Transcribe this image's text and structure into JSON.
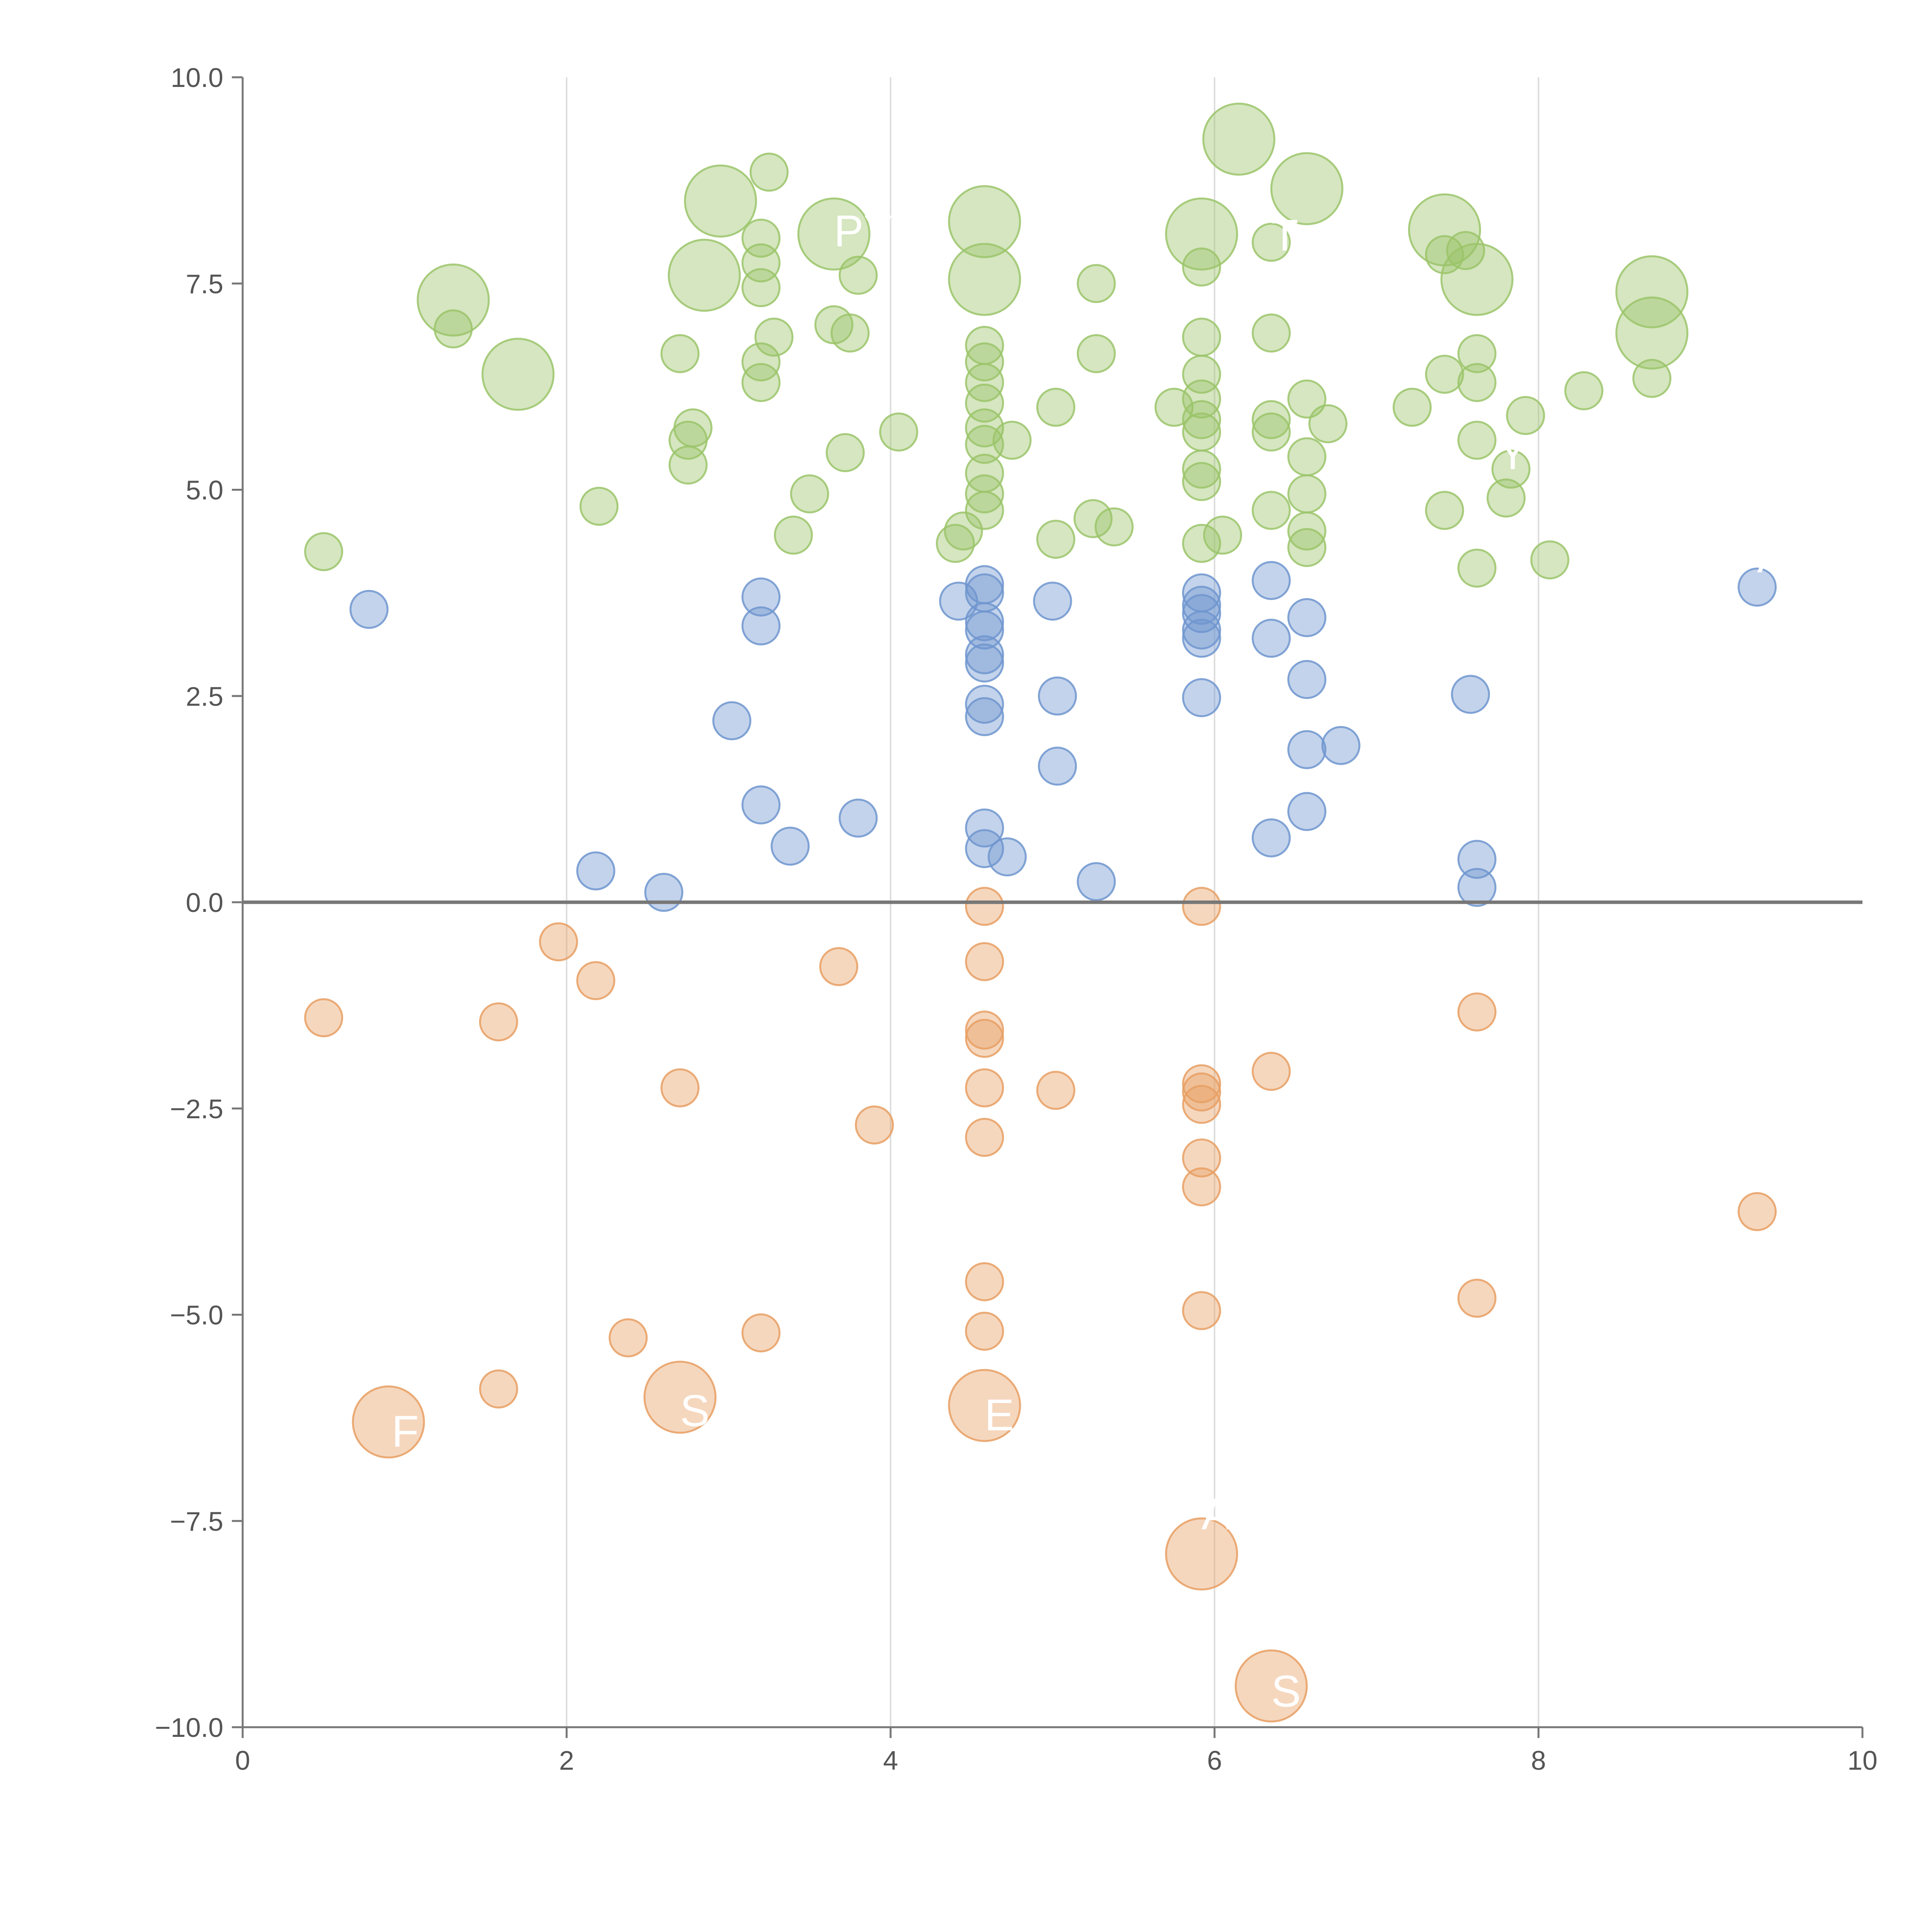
{
  "chart_data": {
    "type": "scatter",
    "title": "",
    "xlabel": "",
    "ylabel": "",
    "xlim": [
      0,
      10
    ],
    "ylim": [
      -10,
      10
    ],
    "x_ticks": [
      0,
      2,
      4,
      6,
      8,
      10
    ],
    "x_tick_labels": [
      "0",
      "2",
      "4",
      "6",
      "8",
      "10"
    ],
    "y_ticks": [
      -10,
      -7.5,
      -5,
      -2.5,
      0,
      2.5,
      5,
      7.5,
      10
    ],
    "y_tick_labels": [
      "−10.0",
      "−7.5",
      "−5.0",
      "−2.5",
      "0.0",
      "2.5",
      "5.0",
      "7.5",
      "10.0"
    ],
    "vertical_gridlines_at": [
      2,
      4,
      6,
      8
    ],
    "baseline_y": 0,
    "colors": {
      "green": "#9bc46a",
      "blue": "#6f95cf",
      "orange": "#e79f63",
      "axis": "#777777",
      "grid": "#dddddd",
      "label": "#ffffff"
    },
    "series": [
      {
        "name": "green",
        "size_unit": "small",
        "points": [
          [
            0.5,
            4.25,
            1
          ],
          [
            1.3,
            6.95,
            1
          ],
          [
            1.3,
            7.3,
            2
          ],
          [
            1.7,
            6.4,
            2
          ],
          [
            2.2,
            4.8,
            1
          ],
          [
            2.75,
            5.3,
            1
          ],
          [
            2.75,
            5.6,
            1
          ],
          [
            2.78,
            5.75,
            1
          ],
          [
            2.7,
            6.65,
            1
          ],
          [
            2.85,
            7.6,
            2
          ],
          [
            2.95,
            8.5,
            2
          ],
          [
            3.2,
            6.3,
            1
          ],
          [
            3.2,
            6.55,
            1
          ],
          [
            3.2,
            7.45,
            1
          ],
          [
            3.2,
            7.75,
            1
          ],
          [
            3.2,
            8.05,
            1
          ],
          [
            3.25,
            8.85,
            1
          ],
          [
            3.28,
            6.85,
            1
          ],
          [
            3.4,
            4.45,
            1
          ],
          [
            3.5,
            4.95,
            1
          ],
          [
            3.65,
            7.0,
            1
          ],
          [
            3.75,
            6.9,
            1
          ],
          [
            3.72,
            5.45,
            1
          ],
          [
            3.65,
            8.1,
            2
          ],
          [
            3.8,
            7.6,
            1
          ],
          [
            4.05,
            5.7,
            1
          ],
          [
            4.4,
            4.35,
            1
          ],
          [
            4.45,
            4.5,
            1
          ],
          [
            4.58,
            4.75,
            1
          ],
          [
            4.58,
            4.95,
            1
          ],
          [
            4.58,
            5.2,
            1
          ],
          [
            4.58,
            5.55,
            1
          ],
          [
            4.58,
            5.75,
            1
          ],
          [
            4.58,
            6.05,
            1
          ],
          [
            4.58,
            6.3,
            1
          ],
          [
            4.58,
            6.55,
            1
          ],
          [
            4.58,
            6.75,
            1
          ],
          [
            4.58,
            7.55,
            2
          ],
          [
            4.58,
            8.25,
            2
          ],
          [
            4.75,
            5.6,
            1
          ],
          [
            5.02,
            4.4,
            1
          ],
          [
            5.02,
            6.0,
            1
          ],
          [
            5.25,
            4.65,
            1
          ],
          [
            5.27,
            6.65,
            1
          ],
          [
            5.27,
            7.5,
            1
          ],
          [
            5.38,
            4.55,
            1
          ],
          [
            5.75,
            6.0,
            1
          ],
          [
            5.92,
            4.35,
            1
          ],
          [
            5.92,
            5.1,
            1
          ],
          [
            5.92,
            5.25,
            1
          ],
          [
            5.92,
            5.7,
            1
          ],
          [
            5.92,
            5.85,
            1
          ],
          [
            5.92,
            6.1,
            1
          ],
          [
            5.92,
            6.4,
            1
          ],
          [
            5.92,
            6.85,
            1
          ],
          [
            5.92,
            7.7,
            1
          ],
          [
            5.92,
            8.1,
            2
          ],
          [
            6.05,
            4.45,
            1
          ],
          [
            6.15,
            9.25,
            2
          ],
          [
            6.35,
            4.75,
            1
          ],
          [
            6.35,
            5.7,
            1
          ],
          [
            6.35,
            5.85,
            1
          ],
          [
            6.35,
            6.9,
            1
          ],
          [
            6.35,
            8.0,
            1
          ],
          [
            6.57,
            4.3,
            1
          ],
          [
            6.57,
            4.5,
            1
          ],
          [
            6.57,
            4.95,
            1
          ],
          [
            6.57,
            5.4,
            1
          ],
          [
            6.57,
            6.1,
            1
          ],
          [
            6.57,
            8.65,
            2
          ],
          [
            6.7,
            5.8,
            1
          ],
          [
            7.22,
            6.0,
            1
          ],
          [
            7.42,
            4.75,
            1
          ],
          [
            7.42,
            6.4,
            1
          ],
          [
            7.42,
            7.85,
            1
          ],
          [
            7.42,
            8.15,
            2
          ],
          [
            7.55,
            7.9,
            1
          ],
          [
            7.62,
            4.05,
            1
          ],
          [
            7.62,
            5.6,
            1
          ],
          [
            7.62,
            6.3,
            1
          ],
          [
            7.62,
            6.65,
            1
          ],
          [
            7.62,
            7.55,
            2
          ],
          [
            7.8,
            4.9,
            1
          ],
          [
            7.83,
            5.25,
            1
          ],
          [
            7.92,
            5.9,
            1
          ],
          [
            8.07,
            4.15,
            1
          ],
          [
            8.28,
            6.2,
            1
          ],
          [
            8.7,
            6.35,
            1
          ],
          [
            8.7,
            6.9,
            2
          ],
          [
            8.7,
            7.4,
            2
          ]
        ]
      },
      {
        "name": "blue",
        "size_unit": "small",
        "points": [
          [
            0.78,
            3.55,
            1
          ],
          [
            2.18,
            0.38,
            1
          ],
          [
            2.6,
            0.12,
            1
          ],
          [
            3.02,
            2.2,
            1
          ],
          [
            3.2,
            1.18,
            1
          ],
          [
            3.2,
            3.35,
            1
          ],
          [
            3.2,
            3.7,
            1
          ],
          [
            3.38,
            0.68,
            1
          ],
          [
            3.8,
            1.02,
            1
          ],
          [
            4.42,
            3.65,
            1
          ],
          [
            4.58,
            0.65,
            1
          ],
          [
            4.58,
            0.9,
            1
          ],
          [
            4.58,
            2.25,
            1
          ],
          [
            4.58,
            2.4,
            1
          ],
          [
            4.58,
            2.9,
            1
          ],
          [
            4.58,
            3.0,
            1
          ],
          [
            4.58,
            3.3,
            1
          ],
          [
            4.58,
            3.4,
            1
          ],
          [
            4.58,
            3.75,
            1
          ],
          [
            4.58,
            3.85,
            1
          ],
          [
            4.72,
            0.55,
            1
          ],
          [
            5.0,
            3.65,
            1
          ],
          [
            5.03,
            1.65,
            1
          ],
          [
            5.03,
            2.5,
            1
          ],
          [
            5.27,
            0.25,
            1
          ],
          [
            5.92,
            2.48,
            1
          ],
          [
            5.92,
            3.2,
            1
          ],
          [
            5.92,
            3.3,
            1
          ],
          [
            5.92,
            3.5,
            1
          ],
          [
            5.92,
            3.6,
            1
          ],
          [
            5.92,
            3.75,
            1
          ],
          [
            6.35,
            0.78,
            1
          ],
          [
            6.35,
            3.2,
            1
          ],
          [
            6.35,
            3.9,
            1
          ],
          [
            6.57,
            1.1,
            1
          ],
          [
            6.57,
            1.85,
            1
          ],
          [
            6.57,
            2.7,
            1
          ],
          [
            6.57,
            3.45,
            1
          ],
          [
            6.78,
            1.9,
            1
          ],
          [
            7.58,
            2.52,
            1
          ],
          [
            7.62,
            0.18,
            1
          ],
          [
            7.62,
            0.52,
            1
          ],
          [
            9.35,
            3.82,
            1
          ]
        ]
      },
      {
        "name": "orange",
        "size_unit": "small",
        "points": [
          [
            0.5,
            -1.4,
            1
          ],
          [
            0.9,
            -6.3,
            2
          ],
          [
            1.58,
            -1.45,
            1
          ],
          [
            1.58,
            -5.9,
            1
          ],
          [
            1.95,
            -0.48,
            1
          ],
          [
            2.18,
            -0.95,
            1
          ],
          [
            2.38,
            -5.28,
            1
          ],
          [
            2.7,
            -2.25,
            1
          ],
          [
            2.7,
            -6.0,
            2
          ],
          [
            3.2,
            -5.22,
            1
          ],
          [
            3.68,
            -0.78,
            1
          ],
          [
            3.9,
            -2.7,
            1
          ],
          [
            4.58,
            -0.05,
            1
          ],
          [
            4.58,
            -0.72,
            1
          ],
          [
            4.58,
            -1.55,
            1
          ],
          [
            4.58,
            -1.65,
            1
          ],
          [
            4.58,
            -2.25,
            1
          ],
          [
            4.58,
            -2.85,
            1
          ],
          [
            4.58,
            -4.6,
            1
          ],
          [
            4.58,
            -5.2,
            1
          ],
          [
            4.58,
            -6.1,
            2
          ],
          [
            5.02,
            -2.28,
            1
          ],
          [
            5.92,
            -0.05,
            1
          ],
          [
            5.92,
            -2.2,
            1
          ],
          [
            5.92,
            -2.3,
            1
          ],
          [
            5.92,
            -2.45,
            1
          ],
          [
            5.92,
            -3.1,
            1
          ],
          [
            5.92,
            -3.45,
            1
          ],
          [
            5.92,
            -4.95,
            1
          ],
          [
            5.92,
            -7.9,
            2
          ],
          [
            6.35,
            -2.05,
            1
          ],
          [
            6.35,
            -9.5,
            2
          ],
          [
            7.62,
            -1.33,
            1
          ],
          [
            7.62,
            -4.8,
            1
          ],
          [
            9.35,
            -3.75,
            1
          ]
        ]
      }
    ],
    "annotations": [
      {
        "text": "F",
        "x": 0.92,
        "y": -6.6
      },
      {
        "text": "S",
        "x": 2.7,
        "y": -6.35
      },
      {
        "text": "E",
        "x": 4.58,
        "y": -6.4
      },
      {
        "text": "A",
        "x": 5.92,
        "y": -7.6
      },
      {
        "text": "S",
        "x": 6.35,
        "y": -9.75
      },
      {
        "text": "PYF",
        "x": 3.65,
        "y": 7.95
      },
      {
        "text": "T",
        "x": 6.35,
        "y": 7.9
      },
      {
        "text": "Y",
        "x": 7.75,
        "y": 5.25
      },
      {
        "text": "A",
        "x": 9.35,
        "y": 4.0
      }
    ]
  }
}
